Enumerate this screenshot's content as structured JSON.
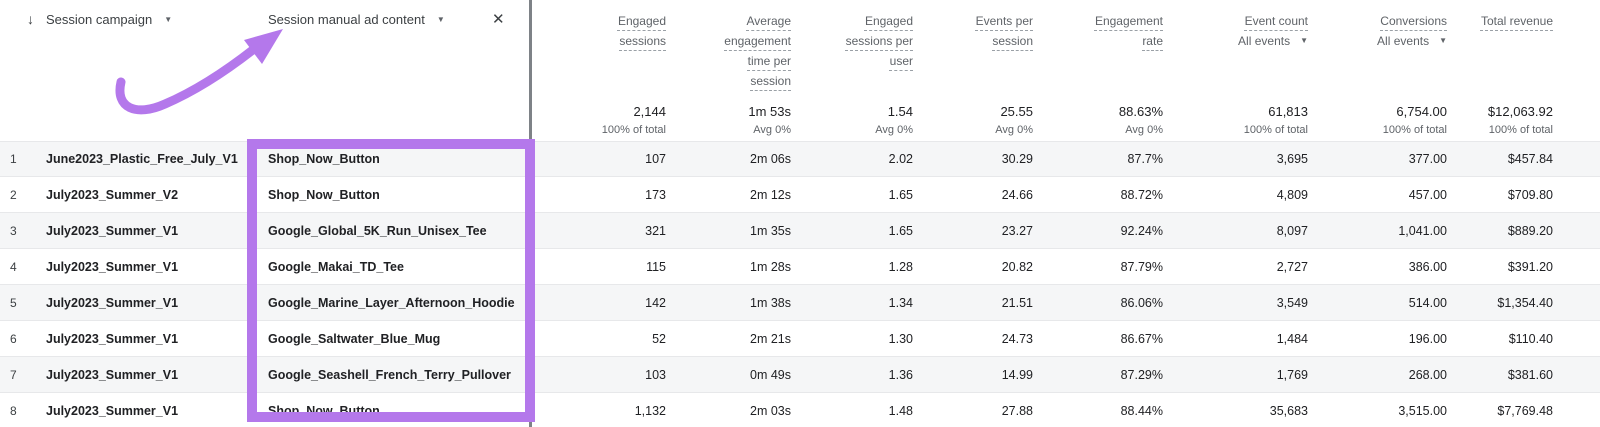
{
  "header": {
    "sort_icon": "↓",
    "primary_dimension": "Session campaign",
    "secondary_dimension": "Session manual ad content",
    "close_icon": "✕",
    "caret_icon": "▼"
  },
  "metric_columns": [
    {
      "label": "Engaged sessions",
      "sub": "",
      "total": "2,144",
      "total_sub": "100% of total"
    },
    {
      "label": "Average engagement time per session",
      "sub": "",
      "total": "1m 53s",
      "total_sub": "Avg 0%"
    },
    {
      "label": "Engaged sessions per user",
      "sub": "",
      "total": "1.54",
      "total_sub": "Avg 0%"
    },
    {
      "label": "Events per session",
      "sub": "",
      "total": "25.55",
      "total_sub": "Avg 0%"
    },
    {
      "label": "Engagement rate",
      "sub": "",
      "total": "88.63%",
      "total_sub": "Avg 0%"
    },
    {
      "label": "Event count",
      "sub": "All events",
      "total": "61,813",
      "total_sub": "100% of total"
    },
    {
      "label": "Conversions",
      "sub": "All events",
      "total": "6,754.00",
      "total_sub": "100% of total"
    },
    {
      "label": "Total revenue",
      "sub": "",
      "total": "$12,063.92",
      "total_sub": "100% of total"
    }
  ],
  "rows": [
    {
      "num": "1",
      "campaign": "June2023_Plastic_Free_July_V1",
      "ad_content": "Shop_Now_Button",
      "values": [
        "107",
        "2m 06s",
        "2.02",
        "30.29",
        "87.7%",
        "3,695",
        "377.00",
        "$457.84"
      ]
    },
    {
      "num": "2",
      "campaign": "July2023_Summer_V2",
      "ad_content": "Shop_Now_Button",
      "values": [
        "173",
        "2m 12s",
        "1.65",
        "24.66",
        "88.72%",
        "4,809",
        "457.00",
        "$709.80"
      ]
    },
    {
      "num": "3",
      "campaign": "July2023_Summer_V1",
      "ad_content": "Google_Global_5K_Run_Unisex_Tee",
      "values": [
        "321",
        "1m 35s",
        "1.65",
        "23.27",
        "92.24%",
        "8,097",
        "1,041.00",
        "$889.20"
      ]
    },
    {
      "num": "4",
      "campaign": "July2023_Summer_V1",
      "ad_content": "Google_Makai_TD_Tee",
      "values": [
        "115",
        "1m 28s",
        "1.28",
        "20.82",
        "87.79%",
        "2,727",
        "386.00",
        "$391.20"
      ]
    },
    {
      "num": "5",
      "campaign": "July2023_Summer_V1",
      "ad_content": "Google_Marine_Layer_Afternoon_Hoodie",
      "values": [
        "142",
        "1m 38s",
        "1.34",
        "21.51",
        "86.06%",
        "3,549",
        "514.00",
        "$1,354.40"
      ]
    },
    {
      "num": "6",
      "campaign": "July2023_Summer_V1",
      "ad_content": "Google_Saltwater_Blue_Mug",
      "values": [
        "52",
        "2m 21s",
        "1.30",
        "24.73",
        "86.67%",
        "1,484",
        "196.00",
        "$110.40"
      ]
    },
    {
      "num": "7",
      "campaign": "July2023_Summer_V1",
      "ad_content": "Google_Seashell_French_Terry_Pullover",
      "values": [
        "103",
        "0m 49s",
        "1.36",
        "14.99",
        "87.29%",
        "1,769",
        "268.00",
        "$381.60"
      ]
    },
    {
      "num": "8",
      "campaign": "July2023_Summer_V1",
      "ad_content": "Shop_Now_Button",
      "values": [
        "1,132",
        "2m 03s",
        "1.48",
        "27.88",
        "88.44%",
        "35,683",
        "3,515.00",
        "$7,769.48"
      ]
    }
  ],
  "annotation": {
    "highlight_color": "#b478eb"
  }
}
